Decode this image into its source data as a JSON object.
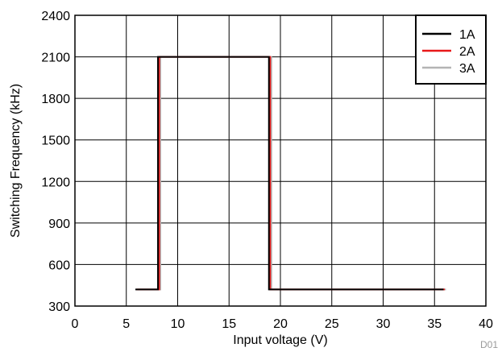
{
  "chart_data": {
    "type": "line",
    "xlabel": "Input voltage (V)",
    "ylabel": "Switching Frequency (kHz)",
    "xlim": [
      0,
      40
    ],
    "ylim": [
      300,
      2400
    ],
    "x_ticks": [
      0,
      5,
      10,
      15,
      20,
      25,
      30,
      35,
      40
    ],
    "y_ticks": [
      300,
      600,
      900,
      1200,
      1500,
      1800,
      2100,
      2400
    ],
    "grid": true,
    "legend_position": "top-right",
    "series": [
      {
        "name": "1A",
        "color": "#000000",
        "points": [
          [
            6,
            420
          ],
          [
            8.2,
            420
          ],
          [
            8.2,
            2100
          ],
          [
            19,
            2100
          ],
          [
            19,
            420
          ],
          [
            36,
            420
          ]
        ]
      },
      {
        "name": "2A",
        "color": "#e8191a",
        "points": [
          [
            6,
            420
          ],
          [
            8.2,
            420
          ],
          [
            8.2,
            2100
          ],
          [
            19,
            2100
          ],
          [
            19,
            420
          ],
          [
            36,
            420
          ]
        ]
      },
      {
        "name": "3A",
        "color": "#b4b4b4",
        "points": [
          [
            6,
            420
          ],
          [
            8.2,
            420
          ],
          [
            8.2,
            2100
          ],
          [
            19,
            2100
          ],
          [
            19,
            420
          ],
          [
            36,
            420
          ]
        ]
      }
    ],
    "footnote": "D01"
  }
}
